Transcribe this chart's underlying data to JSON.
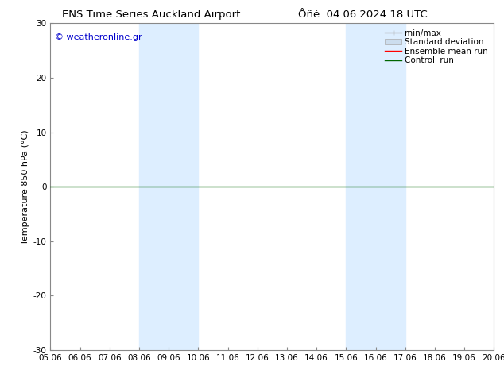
{
  "title_left": "ENS Time Series Auckland Airport",
  "title_right": "Ôñé. 04.06.2024 18 UTC",
  "ylabel": "Temperature 850 hPa (°C)",
  "xlabel_ticks": [
    "05.06",
    "06.06",
    "07.06",
    "08.06",
    "09.06",
    "10.06",
    "11.06",
    "12.06",
    "13.06",
    "14.06",
    "15.06",
    "16.06",
    "17.06",
    "18.06",
    "19.06",
    "20.06"
  ],
  "ylim": [
    -30,
    30
  ],
  "yticks": [
    -30,
    -20,
    -10,
    0,
    10,
    20,
    30
  ],
  "watermark": "© weatheronline.gr",
  "watermark_color": "#0000cc",
  "bg_color": "#ffffff",
  "plot_bg_color": "#ffffff",
  "shaded_bands": [
    {
      "x_start": 8.06,
      "x_end": 10.06,
      "color": "#ddeeff",
      "alpha": 1.0
    },
    {
      "x_start": 15.06,
      "x_end": 17.06,
      "color": "#ddeeff",
      "alpha": 1.0
    }
  ],
  "hline_y": 0,
  "hline_color": "#006600",
  "hline_lw": 1.0,
  "legend_entries": [
    {
      "label": "min/max",
      "color": "#aaaaaa",
      "lw": 1.0,
      "style": "line_with_caps"
    },
    {
      "label": "Standard deviation",
      "color": "#ccddee",
      "lw": 6,
      "style": "bar"
    },
    {
      "label": "Ensemble mean run",
      "color": "#ff0000",
      "lw": 1.0,
      "style": "line"
    },
    {
      "label": "Controll run",
      "color": "#006600",
      "lw": 1.0,
      "style": "line"
    }
  ],
  "border_color": "#888888",
  "border_lw": 0.8,
  "title_fontsize": 9.5,
  "tick_fontsize": 7.5,
  "legend_fontsize": 7.5,
  "ylabel_fontsize": 8,
  "watermark_fontsize": 8,
  "x_num_start": 5.06,
  "x_num_end": 20.06,
  "x_tick_positions": [
    5.06,
    6.06,
    7.06,
    8.06,
    9.06,
    10.06,
    11.06,
    12.06,
    13.06,
    14.06,
    15.06,
    16.06,
    17.06,
    18.06,
    19.06,
    20.06
  ]
}
